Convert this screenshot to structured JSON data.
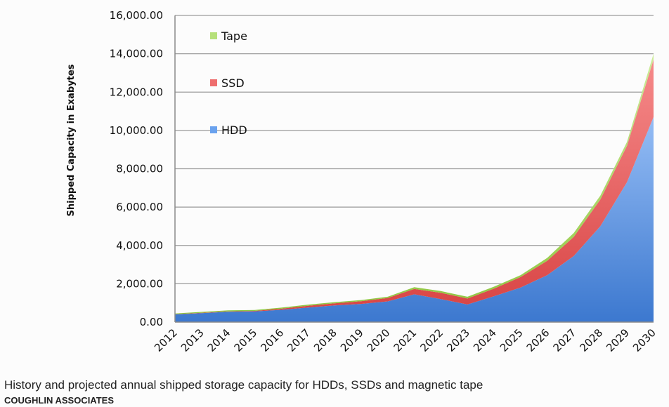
{
  "chart_data": {
    "type": "area",
    "stacked": true,
    "title": "",
    "xlabel": "",
    "ylabel": "Shipped Capacity in Exabytes",
    "ylim": [
      0,
      16000
    ],
    "yticks": [
      "0.00",
      "2,000.00",
      "4,000.00",
      "6,000.00",
      "8,000.00",
      "10,000.00",
      "12,000.00",
      "14,000.00",
      "16,000.00"
    ],
    "ytick_values": [
      0,
      2000,
      4000,
      6000,
      8000,
      10000,
      12000,
      14000,
      16000
    ],
    "grid": true,
    "legend_position": "top-left-inside",
    "categories": [
      "2012",
      "2013",
      "2014",
      "2015",
      "2016",
      "2017",
      "2018",
      "2019",
      "2020",
      "2021",
      "2022",
      "2023",
      "2024",
      "2025",
      "2026",
      "2027",
      "2028",
      "2029",
      "2030"
    ],
    "series": [
      {
        "name": "HDD",
        "color": "#4a82d4",
        "values": [
          400,
          470,
          540,
          560,
          640,
          760,
          870,
          950,
          1080,
          1450,
          1200,
          920,
          1350,
          1800,
          2450,
          3450,
          5000,
          7300,
          10700
        ]
      },
      {
        "name": "SSD",
        "color": "#e05252",
        "values": [
          10,
          15,
          20,
          25,
          60,
          90,
          110,
          140,
          180,
          280,
          330,
          310,
          400,
          550,
          750,
          1000,
          1400,
          1900,
          3000
        ]
      },
      {
        "name": "Tape",
        "color": "#9ccf4a",
        "values": [
          40,
          45,
          50,
          50,
          55,
          60,
          60,
          60,
          60,
          90,
          90,
          90,
          100,
          100,
          150,
          200,
          200,
          200,
          300
        ]
      }
    ],
    "legend": [
      "Tape",
      "SSD",
      "HDD"
    ]
  },
  "caption": {
    "text": "History and projected annual shipped storage capacity for HDDs, SSDs and magnetic tape",
    "credit": "COUGHLIN ASSOCIATES"
  }
}
